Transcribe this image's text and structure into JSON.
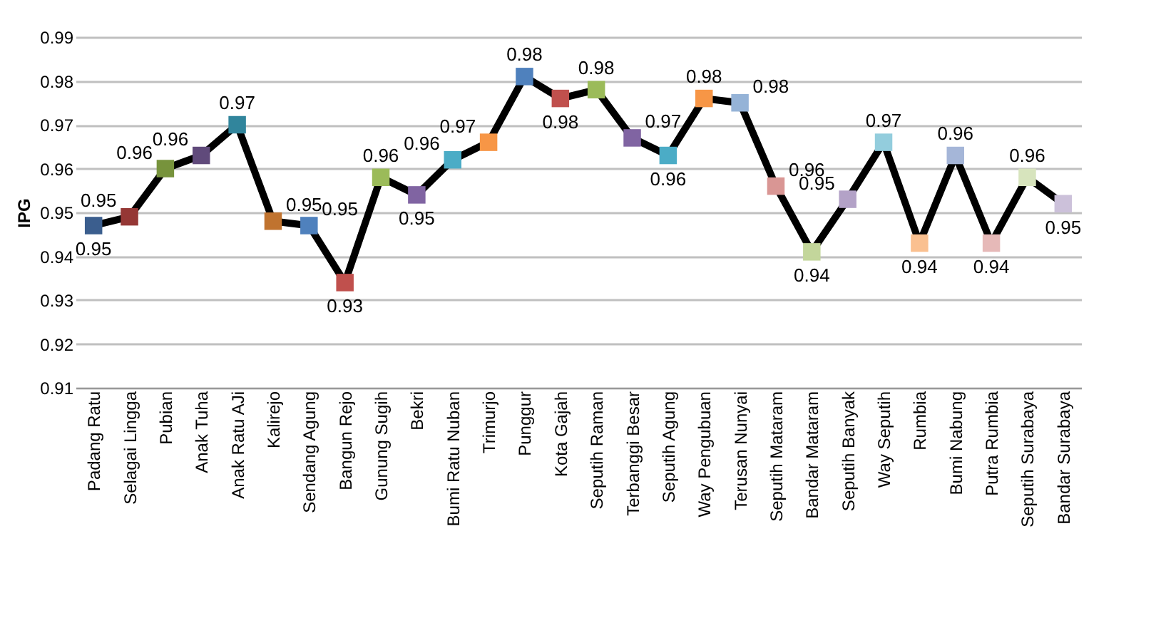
{
  "chart_data": {
    "type": "line",
    "ylabel": "IPG",
    "categories": [
      "Padang Ratu",
      "Selagai Lingga",
      "Pubian",
      "Anak Tuha",
      "Anak Ratu AJi",
      "Kalirejo",
      "Sendang Agung",
      "Bangun Rejo",
      "Gunung Sugih",
      "Bekri",
      "Bumi Ratu Nuban",
      "Trimurjo",
      "Punggur",
      "Kota Gajah",
      "Seputih Raman",
      "Terbanggi Besar",
      "Seputih Agung",
      "Way Pengubuan",
      "Terusan Nunyai",
      "Seputih Mataram",
      "Bandar Mataram",
      "Seputih Banyak",
      "Way Seputih",
      "Rumbia",
      "Bumi Nabung",
      "Putra Rumbia",
      "Seputih Surabaya",
      "Bandar Surabaya"
    ],
    "series": [
      {
        "color": "#000000",
        "values": [
          0.947,
          0.949,
          0.96,
          0.963,
          0.97,
          0.948,
          0.947,
          0.934,
          0.958,
          0.954,
          0.962,
          0.966,
          0.981,
          0.976,
          0.978,
          0.967,
          0.963,
          0.976,
          0.975,
          0.956,
          0.941,
          0.953,
          0.966,
          0.943,
          0.963,
          0.943,
          0.958,
          0.952
        ],
        "colors": [
          "#3b5e8e",
          "#953735",
          "#77933c",
          "#604a7b",
          "#31859c",
          "#c0732f",
          "#4f81bd",
          "#c0504d",
          "#9bbb59",
          "#8064a2",
          "#4bacc6",
          "#f79646",
          "#4f81bd",
          "#c0504d",
          "#9bbb59",
          "#8064a2",
          "#4bacc6",
          "#f79646",
          "#95b3d7",
          "#d99694",
          "#c3d69b",
          "#b3a2c7",
          "#93cddd",
          "#fac090",
          "#a5b6d8",
          "#e6b9b8",
          "#d7e4bd",
          "#ccc1da"
        ],
        "value_labels": [
          "0.95",
          "0.95",
          "0.96",
          "0.96",
          "0.97",
          "0.95",
          "0.95",
          "0.93",
          "0.96",
          "0.95",
          "0.96",
          "0.97",
          "0.98",
          "0.98",
          "0.98",
          "0.97",
          "0.96",
          "0.98",
          "0.98",
          "0.96",
          "0.94",
          "0.95",
          "0.97",
          "0.94",
          "0.96",
          "0.94",
          "0.96",
          "0.95"
        ]
      }
    ],
    "ylim": [
      0.91,
      0.99
    ],
    "yticks": [
      0.91,
      0.92,
      0.93,
      0.94,
      0.95,
      0.96,
      0.97,
      0.98,
      0.99
    ],
    "grid": "y",
    "marker": "square",
    "line_style": "solid"
  }
}
